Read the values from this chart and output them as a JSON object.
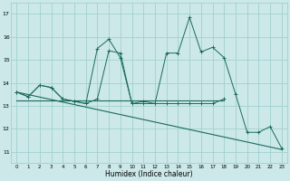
{
  "x": [
    0,
    1,
    2,
    3,
    4,
    5,
    6,
    7,
    8,
    9,
    10,
    11,
    12,
    13,
    14,
    15,
    16,
    17,
    18,
    19,
    20,
    21,
    22,
    23
  ],
  "line1_y": [
    13.6,
    13.4,
    13.9,
    13.8,
    13.3,
    13.2,
    13.1,
    13.3,
    15.4,
    15.3,
    13.1,
    13.1,
    13.1,
    13.1,
    13.1,
    13.1,
    13.1,
    13.1,
    13.3,
    null,
    null,
    null,
    null,
    null
  ],
  "line2_y": [
    13.6,
    13.4,
    13.9,
    13.8,
    13.3,
    13.2,
    13.1,
    15.5,
    15.9,
    15.1,
    13.1,
    13.2,
    13.1,
    15.3,
    15.3,
    16.85,
    15.35,
    15.55,
    15.1,
    13.5,
    11.85,
    11.85,
    12.1,
    11.15
  ],
  "line3_x": [
    0,
    18
  ],
  "line3_y": [
    13.25,
    13.25
  ],
  "line4_x": [
    0,
    23
  ],
  "line4_y": [
    13.6,
    11.1
  ],
  "bg_color": "#cce8e8",
  "line_color": "#1a6b5a",
  "grid_color": "#99cccc",
  "xlabel": "Humidex (Indice chaleur)",
  "yticks": [
    11,
    12,
    13,
    14,
    15,
    16,
    17
  ],
  "xlim": [
    -0.5,
    23.5
  ],
  "ylim": [
    10.5,
    17.5
  ]
}
